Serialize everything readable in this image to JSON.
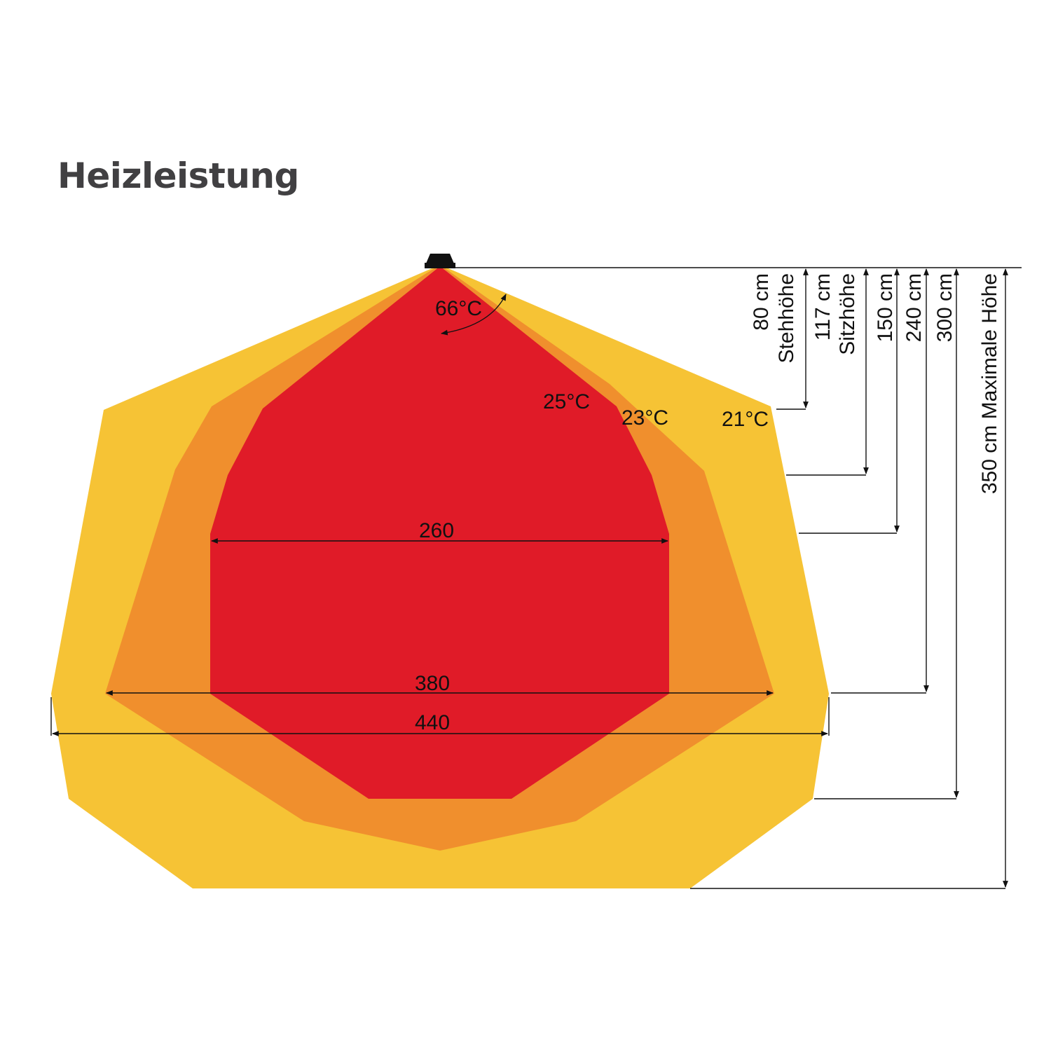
{
  "title": "Heizleistung",
  "colors": {
    "zone_21": "#F6C335",
    "zone_23": "#F08F2D",
    "zone_25": "#E01B28",
    "heater": "#111111",
    "title": "#414042"
  },
  "zones": {
    "outer": {
      "label": "21°C"
    },
    "middle": {
      "label": "23°C"
    },
    "inner": {
      "label": "25°C"
    },
    "core": {
      "label": "66°C"
    }
  },
  "widths": {
    "inner": "260",
    "middle": "380",
    "outer": "440"
  },
  "heights": [
    {
      "value": "80 cm",
      "caption": "Stehhöhe"
    },
    {
      "value": "117 cm",
      "caption": "Sitzhöhe"
    },
    {
      "value": "150 cm"
    },
    {
      "value": "240 cm"
    },
    {
      "value": "300 cm"
    },
    {
      "value": "350 cm Maximale Höhe"
    }
  ]
}
